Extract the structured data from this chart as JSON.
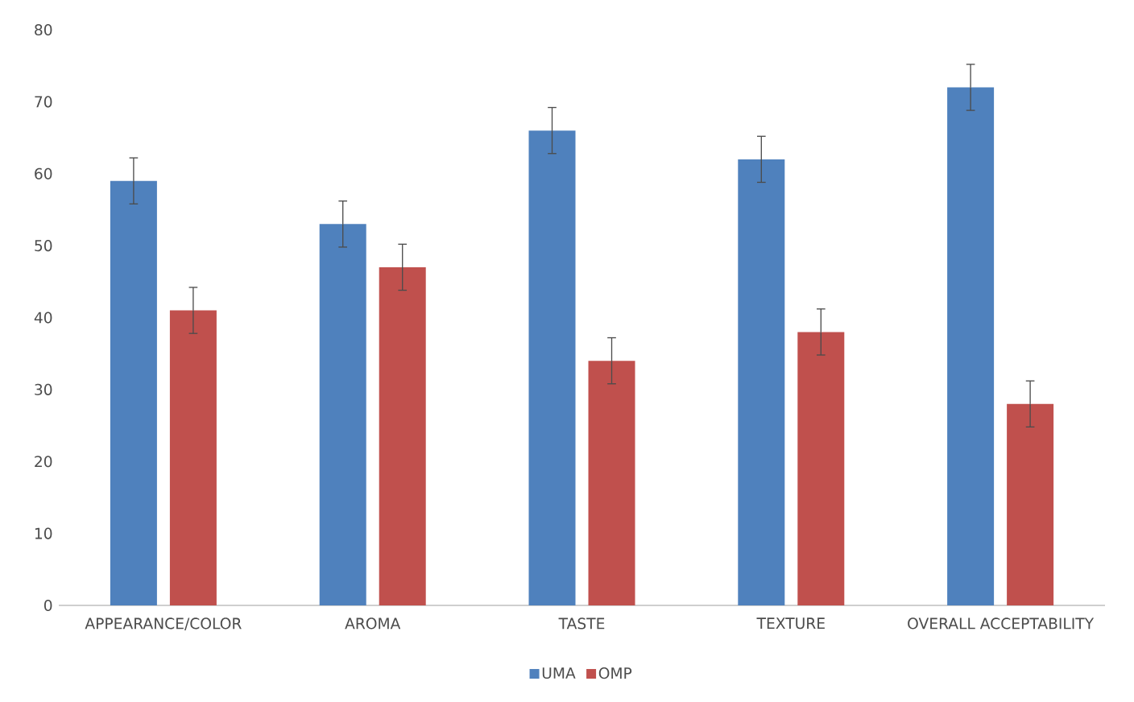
{
  "chart_data": {
    "type": "bar",
    "categories": [
      "APPEARANCE/COLOR",
      "AROMA",
      "TASTE",
      "TEXTURE",
      "OVERALL ACCEPTABILITY"
    ],
    "series": [
      {
        "name": "UMA",
        "color": "#4f81bd",
        "values": [
          59,
          53,
          66,
          62,
          72
        ],
        "errors": [
          3.2,
          3.2,
          3.2,
          3.2,
          3.2
        ]
      },
      {
        "name": "OMP",
        "color": "#c0504d",
        "values": [
          41,
          47,
          34,
          38,
          28
        ],
        "errors": [
          3.2,
          3.2,
          3.2,
          3.2,
          3.2
        ]
      }
    ],
    "ylim": [
      0,
      80
    ],
    "yticks": [
      0,
      10,
      20,
      30,
      40,
      50,
      60,
      70,
      80
    ],
    "legend": "bottom"
  }
}
